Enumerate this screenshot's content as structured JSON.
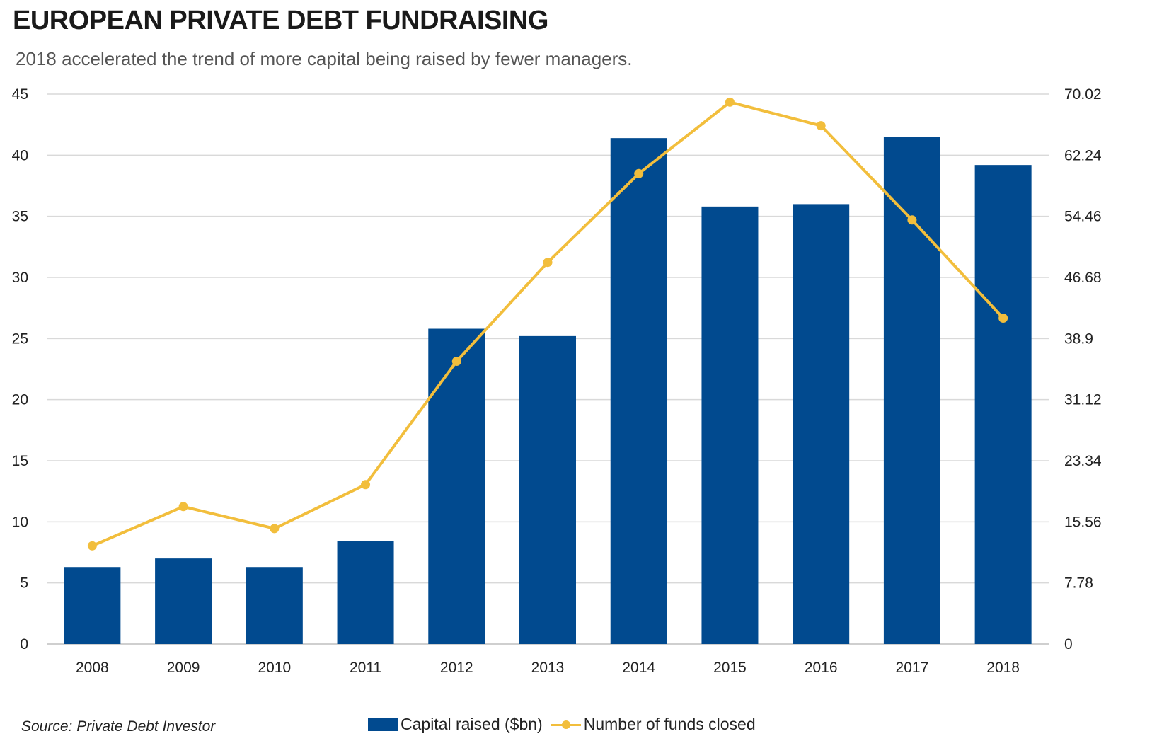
{
  "title": "EUROPEAN PRIVATE DEBT FUNDRAISING",
  "subtitle": "2018 accelerated the trend of more capital being raised by fewer managers.",
  "source": "Source: Private Debt Investor",
  "colors": {
    "bar": "#014A8F",
    "line": "#F2BE3C",
    "grid": "#D9D9D9"
  },
  "chart_data": {
    "type": "bar",
    "categories": [
      "2008",
      "2009",
      "2010",
      "2011",
      "2012",
      "2013",
      "2014",
      "2015",
      "2016",
      "2017",
      "2018"
    ],
    "series": [
      {
        "name": "Capital raised ($bn)",
        "type": "bar",
        "axis": "left",
        "values": [
          6.3,
          7.0,
          6.3,
          8.4,
          25.8,
          25.2,
          41.4,
          35.8,
          36.0,
          41.5,
          39.2
        ]
      },
      {
        "name": "Number of funds closed",
        "type": "line",
        "axis": "right",
        "values": [
          12.5,
          17.5,
          14.7,
          20.3,
          36.0,
          48.6,
          59.9,
          69.0,
          66.0,
          54.0,
          41.5
        ]
      }
    ],
    "y_left": {
      "ylim": [
        0,
        45
      ],
      "ticks": [
        "0",
        "5",
        "10",
        "15",
        "20",
        "25",
        "30",
        "35",
        "40",
        "45"
      ]
    },
    "y_right": {
      "ylim": [
        0,
        70.02
      ],
      "ticks": [
        "0",
        "7.78",
        "15.56",
        "23.34",
        "31.12",
        "38.9",
        "46.68",
        "54.46",
        "62.24",
        "70.02"
      ]
    },
    "grid": true,
    "legend": "bottom"
  }
}
